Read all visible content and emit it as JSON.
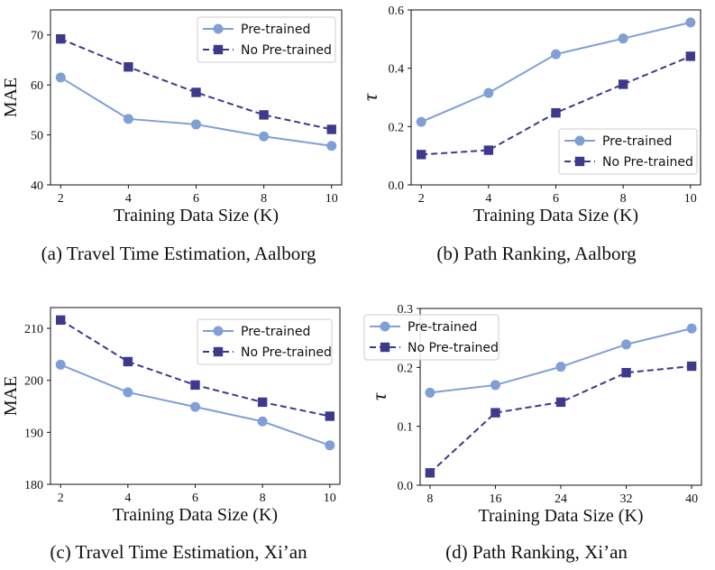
{
  "colors": {
    "pretrained": "#7f9fd6",
    "nopretrained": "#3d3a8c",
    "axis": "#111111"
  },
  "chart_data": [
    {
      "type": "line",
      "caption": "(a)  Travel Time Estimation, Aalborg",
      "xlabel": "Training Data Size (K)",
      "ylabel": "MAE",
      "x": [
        2,
        4,
        6,
        8,
        10
      ],
      "xlim": [
        1.7,
        10.3
      ],
      "ylim": [
        40,
        75
      ],
      "yticks": [
        40,
        50,
        60,
        70
      ],
      "grid": false,
      "legend_position": "top-right",
      "series": [
        {
          "name": "Pre-trained",
          "marker": "circle",
          "linestyle": "solid",
          "values": [
            61.5,
            53.2,
            52.1,
            49.7,
            47.8
          ]
        },
        {
          "name": "No Pre-trained",
          "marker": "square",
          "linestyle": "dashed",
          "values": [
            69.2,
            63.6,
            58.5,
            54.0,
            51.1
          ]
        }
      ]
    },
    {
      "type": "line",
      "caption": "(b)  Path Ranking, Aalborg",
      "xlabel": "Training Data Size (K)",
      "ylabel": "τ",
      "x": [
        2,
        4,
        6,
        8,
        10
      ],
      "xlim": [
        1.7,
        10.3
      ],
      "ylim": [
        0.0,
        0.6
      ],
      "yticks": [
        0.0,
        0.2,
        0.4,
        0.6
      ],
      "grid": false,
      "legend_position": "lower-right",
      "series": [
        {
          "name": "Pre-trained",
          "marker": "circle",
          "linestyle": "solid",
          "values": [
            0.216,
            0.315,
            0.448,
            0.502,
            0.557
          ]
        },
        {
          "name": "No Pre-trained",
          "marker": "square",
          "linestyle": "dashed",
          "values": [
            0.104,
            0.119,
            0.247,
            0.345,
            0.441
          ]
        }
      ]
    },
    {
      "type": "line",
      "caption": "(c)  Travel Time Estimation, Xi’an",
      "xlabel": "Training Data Size (K)",
      "ylabel": "MAE",
      "x": [
        2,
        4,
        6,
        8,
        10
      ],
      "xlim": [
        1.7,
        10.3
      ],
      "ylim": [
        180,
        214
      ],
      "yticks": [
        180,
        190,
        200,
        210
      ],
      "grid": false,
      "legend_position": "top-right",
      "series": [
        {
          "name": "Pre-trained",
          "marker": "circle",
          "linestyle": "solid",
          "values": [
            203.0,
            197.7,
            194.9,
            192.1,
            187.5
          ]
        },
        {
          "name": "No Pre-trained",
          "marker": "square",
          "linestyle": "dashed",
          "values": [
            211.6,
            203.6,
            199.1,
            195.8,
            193.1
          ]
        }
      ]
    },
    {
      "type": "line",
      "caption": "(d)  Path Ranking, Xi’an",
      "xlabel": "Training Data Size (K)",
      "ylabel": "τ",
      "x": [
        8,
        16,
        24,
        32,
        40
      ],
      "xlim": [
        6.8,
        41.2
      ],
      "ylim": [
        0.0,
        0.3
      ],
      "yticks": [
        0.0,
        0.1,
        0.2,
        0.3
      ],
      "grid": false,
      "legend_position": "top-left",
      "series": [
        {
          "name": "Pre-trained",
          "marker": "circle",
          "linestyle": "solid",
          "values": [
            0.157,
            0.17,
            0.201,
            0.239,
            0.266
          ]
        },
        {
          "name": "No Pre-trained",
          "marker": "square",
          "linestyle": "dashed",
          "values": [
            0.021,
            0.123,
            0.141,
            0.191,
            0.202
          ]
        }
      ]
    }
  ]
}
